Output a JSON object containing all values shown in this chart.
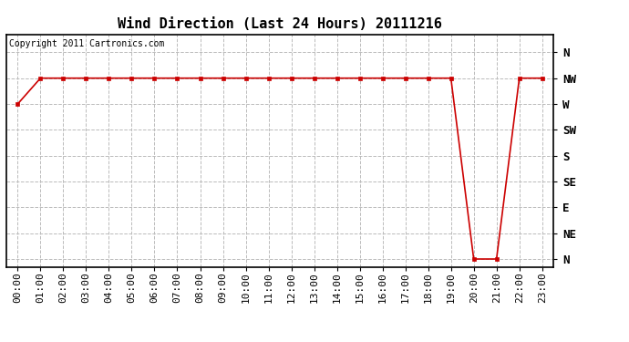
{
  "title": "Wind Direction (Last 24 Hours) 20111216",
  "copyright_text": "Copyright 2011 Cartronics.com",
  "background_color": "#ffffff",
  "line_color": "#cc0000",
  "marker": "s",
  "marker_size": 3,
  "marker_linewidth": 1,
  "x_labels": [
    "00:00",
    "01:00",
    "02:00",
    "03:00",
    "04:00",
    "05:00",
    "06:00",
    "07:00",
    "08:00",
    "09:00",
    "10:00",
    "11:00",
    "12:00",
    "13:00",
    "14:00",
    "15:00",
    "16:00",
    "17:00",
    "18:00",
    "19:00",
    "20:00",
    "21:00",
    "22:00",
    "23:00"
  ],
  "y_ticks_labels": [
    "N",
    "NW",
    "W",
    "SW",
    "S",
    "SE",
    "E",
    "NE",
    "N"
  ],
  "y_ticks_values": [
    8,
    7,
    6,
    5,
    4,
    3,
    2,
    1,
    0
  ],
  "y_data": [
    6,
    7,
    7,
    7,
    7,
    7,
    7,
    7,
    7,
    7,
    7,
    7,
    7,
    7,
    7,
    7,
    7,
    7,
    7,
    7,
    0,
    0,
    7,
    7
  ],
  "ylim": [
    -0.3,
    8.7
  ],
  "grid_color": "#bbbbbb",
  "grid_style": "--",
  "title_fontsize": 11,
  "tick_fontsize": 8,
  "copyright_fontsize": 7,
  "line_width": 1.2
}
